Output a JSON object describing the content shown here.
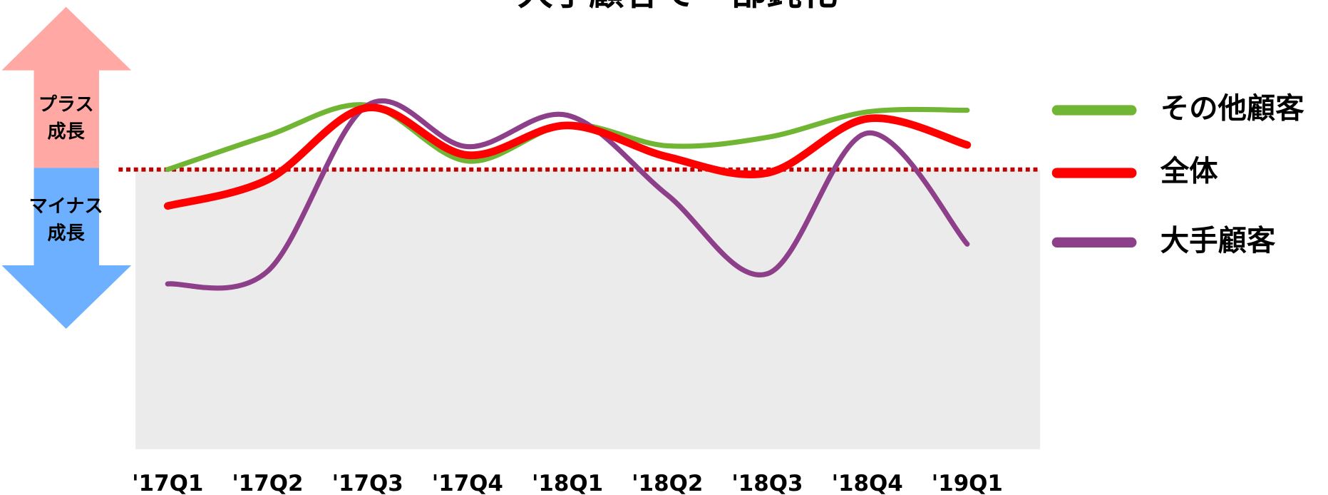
{
  "chart_data": {
    "type": "line",
    "title": "大手顧客で一部鈍化",
    "categories": [
      "'17Q1",
      "'17Q2",
      "'17Q3",
      "'17Q4",
      "'18Q1",
      "'18Q2",
      "'18Q3",
      "'18Q4",
      "'19Q1"
    ],
    "series": [
      {
        "name": "その他顧客",
        "color": "#70b634",
        "values": [
          0,
          4,
          7.6,
          1,
          5.3,
          2.8,
          3.8,
          6.8,
          7
        ]
      },
      {
        "name": "全体",
        "color": "#ff0000",
        "values": [
          -4.3,
          -1.2,
          7.3,
          1.7,
          5.2,
          1.5,
          -0.4,
          6,
          2.9
        ]
      },
      {
        "name": "大手顧客",
        "color": "#8e3f8a",
        "values": [
          -13.5,
          -12,
          7.6,
          2.7,
          6.4,
          -3,
          -12.3,
          4.3,
          -8.8
        ]
      }
    ],
    "ylim": [
      -33,
      19
    ],
    "reference_line": 0,
    "annotations": {
      "plus": [
        "プラス",
        "成長"
      ],
      "minus": [
        "マイナス",
        "成長"
      ]
    },
    "legend": "right"
  }
}
